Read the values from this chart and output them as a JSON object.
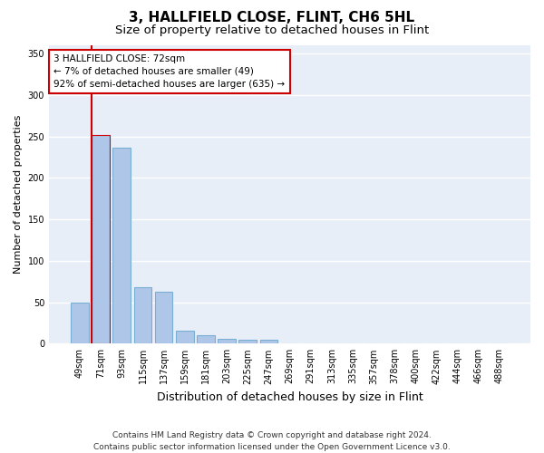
{
  "title": "3, HALLFIELD CLOSE, FLINT, CH6 5HL",
  "subtitle": "Size of property relative to detached houses in Flint",
  "xlabel": "Distribution of detached houses by size in Flint",
  "ylabel": "Number of detached properties",
  "footer_line1": "Contains HM Land Registry data © Crown copyright and database right 2024.",
  "footer_line2": "Contains public sector information licensed under the Open Government Licence v3.0.",
  "categories": [
    "49sqm",
    "71sqm",
    "93sqm",
    "115sqm",
    "137sqm",
    "159sqm",
    "181sqm",
    "203sqm",
    "225sqm",
    "247sqm",
    "269sqm",
    "291sqm",
    "313sqm",
    "335sqm",
    "357sqm",
    "378sqm",
    "400sqm",
    "422sqm",
    "444sqm",
    "466sqm",
    "488sqm"
  ],
  "values": [
    49,
    252,
    236,
    68,
    63,
    16,
    10,
    6,
    5,
    5,
    0,
    0,
    0,
    0,
    0,
    0,
    0,
    0,
    0,
    0,
    0
  ],
  "bar_color": "#aec6e8",
  "bar_edge_color": "#7aafd4",
  "highlight_bar_index": 1,
  "highlight_edge_color": "#cc0000",
  "annotation_text": "3 HALLFIELD CLOSE: 72sqm\n← 7% of detached houses are smaller (49)\n92% of semi-detached houses are larger (635) →",
  "annotation_box_color": "#ffffff",
  "annotation_box_edge_color": "#cc0000",
  "vline_color": "#cc0000",
  "ylim": [
    0,
    360
  ],
  "yticks": [
    0,
    50,
    100,
    150,
    200,
    250,
    300,
    350
  ],
  "bg_color": "#e8eef8",
  "grid_color": "#ffffff",
  "title_fontsize": 11,
  "subtitle_fontsize": 9.5,
  "xlabel_fontsize": 9,
  "ylabel_fontsize": 8,
  "tick_fontsize": 7,
  "annotation_fontsize": 7.5,
  "footer_fontsize": 6.5
}
